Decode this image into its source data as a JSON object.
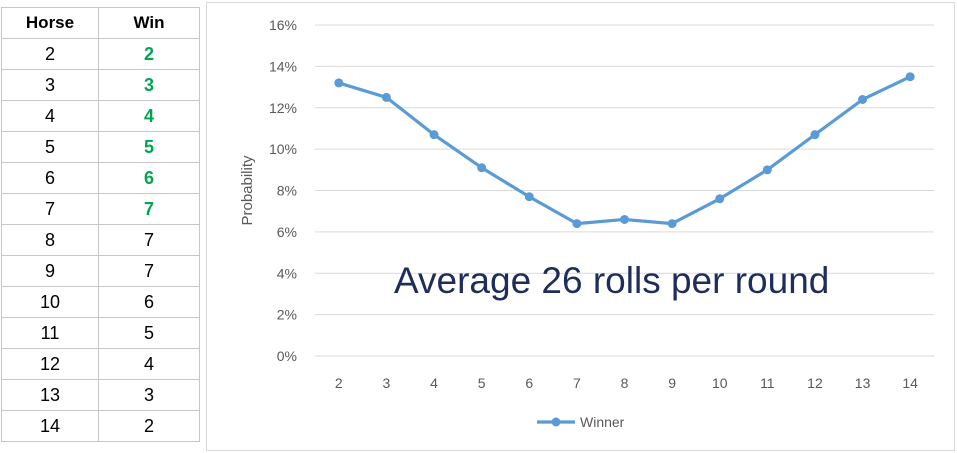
{
  "table": {
    "headers": [
      "Horse",
      "Win"
    ],
    "rows": [
      {
        "horse": "2",
        "win": "2",
        "highlight": true
      },
      {
        "horse": "3",
        "win": "3",
        "highlight": true
      },
      {
        "horse": "4",
        "win": "4",
        "highlight": true
      },
      {
        "horse": "5",
        "win": "5",
        "highlight": true
      },
      {
        "horse": "6",
        "win": "6",
        "highlight": true
      },
      {
        "horse": "7",
        "win": "7",
        "highlight": true
      },
      {
        "horse": "8",
        "win": "7",
        "highlight": false
      },
      {
        "horse": "9",
        "win": "7",
        "highlight": false
      },
      {
        "horse": "10",
        "win": "6",
        "highlight": false
      },
      {
        "horse": "11",
        "win": "5",
        "highlight": false
      },
      {
        "horse": "12",
        "win": "4",
        "highlight": false
      },
      {
        "horse": "13",
        "win": "3",
        "highlight": false
      },
      {
        "horse": "14",
        "win": "2",
        "highlight": false
      }
    ],
    "highlight_color": "#00a651"
  },
  "chart_data": {
    "type": "line",
    "x": [
      "2",
      "3",
      "4",
      "5",
      "6",
      "7",
      "8",
      "9",
      "10",
      "11",
      "12",
      "13",
      "14"
    ],
    "series": [
      {
        "name": "Winner",
        "color": "#5b9bd5",
        "values": [
          0.132,
          0.125,
          0.107,
          0.091,
          0.077,
          0.064,
          0.066,
          0.064,
          0.076,
          0.09,
          0.107,
          0.124,
          0.135
        ]
      }
    ],
    "ylabel": "Probability",
    "xlabel": "",
    "ylim": [
      0,
      0.16
    ],
    "yticks": [
      0,
      0.02,
      0.04,
      0.06,
      0.08,
      0.1,
      0.12,
      0.14,
      0.16
    ],
    "ytick_labels": [
      "0%",
      "2%",
      "4%",
      "6%",
      "8%",
      "10%",
      "12%",
      "14%",
      "16%"
    ],
    "grid": true,
    "legend": "bottom",
    "annotation": "Average 26 rolls per round"
  }
}
